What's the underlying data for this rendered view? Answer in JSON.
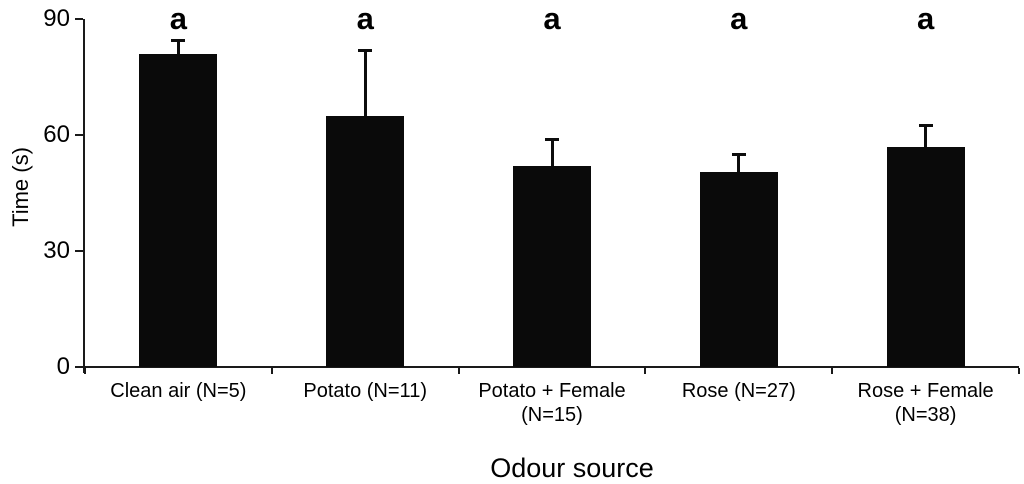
{
  "chart_data": {
    "type": "bar",
    "title": "",
    "categories": [
      "Clean air (N=5)",
      "Potato (N=11)",
      "Potato + Female (N=15)",
      "Rose (N=27)",
      "Rose + Female (N=38)"
    ],
    "values": [
      81,
      65,
      52,
      50.5,
      57
    ],
    "error_plus": [
      3.5,
      17,
      7,
      4.5,
      5.5
    ],
    "significance_letters": [
      "a",
      "a",
      "a",
      "a",
      "a"
    ],
    "xlabel": "Odour source",
    "ylabel": "Time (s)",
    "ylim": [
      0,
      90
    ],
    "yticks": [
      0,
      30,
      60,
      90
    ],
    "bar_color": "#0a0a0a",
    "axis_color": "#1a1a1a",
    "text_color": "#000000",
    "grid": false,
    "legend": null
  }
}
